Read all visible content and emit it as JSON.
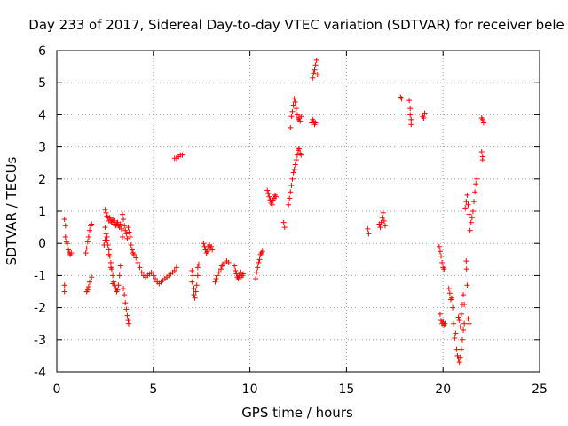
{
  "chart_data": {
    "type": "scatter",
    "title": "Day 233 of 2017, Sidereal Day-to-day VTEC variation (SDTVAR) for receiver bele",
    "xlabel": "GPS time / hours",
    "ylabel": "SDTVAR / TECUs",
    "xlim": [
      0,
      25
    ],
    "ylim": [
      -4,
      6
    ],
    "xticks": [
      0,
      5,
      10,
      15,
      20,
      25
    ],
    "yticks": [
      -4,
      -3,
      -2,
      -1,
      0,
      1,
      2,
      3,
      4,
      5,
      6
    ],
    "xtick_labels": [
      "0",
      "5",
      "10",
      "15",
      "20",
      "25"
    ],
    "ytick_labels": [
      "-4",
      "-3",
      "-2",
      "-1",
      "0",
      "1",
      "2",
      "3",
      "4",
      "5",
      "6"
    ],
    "grid": true,
    "marker": "+",
    "color": "#ff0000",
    "series": [
      {
        "name": "SDTVAR",
        "points": [
          [
            0.4,
            -1.3
          ],
          [
            0.4,
            -1.5
          ],
          [
            0.4,
            0.75
          ],
          [
            0.45,
            0.55
          ],
          [
            0.45,
            0.2
          ],
          [
            0.5,
            0.05
          ],
          [
            0.55,
            0.0
          ],
          [
            0.6,
            -0.2
          ],
          [
            0.65,
            -0.3
          ],
          [
            0.7,
            -0.35
          ],
          [
            0.75,
            -0.3
          ],
          [
            1.5,
            -0.3
          ],
          [
            1.55,
            -0.15
          ],
          [
            1.6,
            0.05
          ],
          [
            1.65,
            0.2
          ],
          [
            1.7,
            0.4
          ],
          [
            1.75,
            0.55
          ],
          [
            1.8,
            0.6
          ],
          [
            1.55,
            -1.5
          ],
          [
            1.6,
            -1.45
          ],
          [
            1.65,
            -1.35
          ],
          [
            1.7,
            -1.2
          ],
          [
            1.8,
            -1.05
          ],
          [
            2.45,
            -0.05
          ],
          [
            2.5,
            0.1
          ],
          [
            2.5,
            1.05
          ],
          [
            2.55,
            0.95
          ],
          [
            2.6,
            0.85
          ],
          [
            2.65,
            0.8
          ],
          [
            2.7,
            0.7
          ],
          [
            2.75,
            0.8
          ],
          [
            2.8,
            0.7
          ],
          [
            2.85,
            0.65
          ],
          [
            2.9,
            0.75
          ],
          [
            2.95,
            0.6
          ],
          [
            3.0,
            0.7
          ],
          [
            3.05,
            0.55
          ],
          [
            3.1,
            0.6
          ],
          [
            3.15,
            0.65
          ],
          [
            3.2,
            0.55
          ],
          [
            3.25,
            0.5
          ],
          [
            3.3,
            0.6
          ],
          [
            3.35,
            0.45
          ],
          [
            3.4,
            0.2
          ],
          [
            2.5,
            0.5
          ],
          [
            2.55,
            0.3
          ],
          [
            2.6,
            0.1
          ],
          [
            2.65,
            -0.05
          ],
          [
            2.7,
            -0.2
          ],
          [
            2.75,
            -0.4
          ],
          [
            2.8,
            -0.6
          ],
          [
            2.85,
            -0.8
          ],
          [
            2.9,
            -1.0
          ],
          [
            2.95,
            -1.2
          ],
          [
            3.0,
            -1.3
          ],
          [
            3.05,
            -1.4
          ],
          [
            3.1,
            -1.5
          ],
          [
            3.15,
            -1.45
          ],
          [
            3.2,
            -1.3
          ],
          [
            3.25,
            -1.0
          ],
          [
            3.3,
            -0.7
          ],
          [
            2.6,
            0.2
          ],
          [
            2.7,
            -0.35
          ],
          [
            2.8,
            -0.75
          ],
          [
            2.9,
            -1.25
          ],
          [
            3.4,
            0.9
          ],
          [
            3.45,
            0.75
          ],
          [
            3.5,
            0.55
          ],
          [
            3.55,
            0.4
          ],
          [
            3.6,
            0.3
          ],
          [
            3.65,
            0.15
          ],
          [
            3.7,
            0.5
          ],
          [
            3.75,
            0.35
          ],
          [
            3.8,
            0.2
          ],
          [
            3.85,
            -0.05
          ],
          [
            3.45,
            -1.4
          ],
          [
            3.5,
            -1.6
          ],
          [
            3.55,
            -1.85
          ],
          [
            3.6,
            -2.05
          ],
          [
            3.65,
            -2.25
          ],
          [
            3.7,
            -2.4
          ],
          [
            3.72,
            -2.5
          ],
          [
            3.9,
            -0.2
          ],
          [
            3.95,
            -0.3
          ],
          [
            4.0,
            -0.35
          ],
          [
            4.1,
            -0.45
          ],
          [
            4.2,
            -0.6
          ],
          [
            4.3,
            -0.75
          ],
          [
            4.4,
            -0.9
          ],
          [
            4.5,
            -1.0
          ],
          [
            4.6,
            -1.05
          ],
          [
            4.7,
            -1.0
          ],
          [
            4.8,
            -0.95
          ],
          [
            4.9,
            -0.9
          ],
          [
            5.0,
            -1.0
          ],
          [
            5.1,
            -1.1
          ],
          [
            5.2,
            -1.2
          ],
          [
            5.3,
            -1.25
          ],
          [
            5.4,
            -1.2
          ],
          [
            5.5,
            -1.15
          ],
          [
            5.6,
            -1.1
          ],
          [
            5.7,
            -1.05
          ],
          [
            5.8,
            -1.0
          ],
          [
            5.9,
            -0.95
          ],
          [
            6.0,
            -0.9
          ],
          [
            6.1,
            -0.85
          ],
          [
            6.2,
            -0.75
          ],
          [
            6.1,
            2.65
          ],
          [
            6.2,
            2.65
          ],
          [
            6.3,
            2.7
          ],
          [
            6.4,
            2.75
          ],
          [
            6.5,
            2.75
          ],
          [
            7.0,
            -0.85
          ],
          [
            7.0,
            -1.2
          ],
          [
            7.05,
            -1.0
          ],
          [
            7.1,
            -1.4
          ],
          [
            7.1,
            -1.6
          ],
          [
            7.15,
            -1.7
          ],
          [
            7.2,
            -1.5
          ],
          [
            7.25,
            -1.3
          ],
          [
            7.3,
            -1.0
          ],
          [
            7.3,
            -0.75
          ],
          [
            7.35,
            -0.65
          ],
          [
            7.6,
            0.0
          ],
          [
            7.65,
            -0.1
          ],
          [
            7.7,
            -0.2
          ],
          [
            7.75,
            -0.3
          ],
          [
            7.8,
            -0.25
          ],
          [
            7.85,
            -0.1
          ],
          [
            7.9,
            -0.05
          ],
          [
            7.95,
            -0.15
          ],
          [
            8.0,
            -0.1
          ],
          [
            8.05,
            -0.2
          ],
          [
            8.2,
            -1.2
          ],
          [
            8.25,
            -1.1
          ],
          [
            8.3,
            -1.0
          ],
          [
            8.4,
            -0.9
          ],
          [
            8.5,
            -0.8
          ],
          [
            8.55,
            -0.7
          ],
          [
            8.6,
            -0.65
          ],
          [
            8.7,
            -0.6
          ],
          [
            8.8,
            -0.55
          ],
          [
            8.9,
            -0.6
          ],
          [
            9.2,
            -0.7
          ],
          [
            9.25,
            -0.85
          ],
          [
            9.3,
            -0.95
          ],
          [
            9.35,
            -1.05
          ],
          [
            9.4,
            -1.1
          ],
          [
            9.45,
            -1.0
          ],
          [
            9.5,
            -0.9
          ],
          [
            9.55,
            -1.05
          ],
          [
            9.6,
            -1.0
          ],
          [
            9.65,
            -0.95
          ],
          [
            10.3,
            -1.1
          ],
          [
            10.35,
            -0.9
          ],
          [
            10.4,
            -0.75
          ],
          [
            10.45,
            -0.6
          ],
          [
            10.5,
            -0.5
          ],
          [
            10.55,
            -0.35
          ],
          [
            10.6,
            -0.3
          ],
          [
            10.65,
            -0.25
          ],
          [
            10.9,
            1.65
          ],
          [
            10.95,
            1.55
          ],
          [
            11.0,
            1.45
          ],
          [
            11.05,
            1.35
          ],
          [
            11.1,
            1.25
          ],
          [
            11.15,
            1.2
          ],
          [
            11.2,
            1.35
          ],
          [
            11.25,
            1.4
          ],
          [
            11.3,
            1.5
          ],
          [
            11.35,
            1.45
          ],
          [
            11.75,
            0.65
          ],
          [
            11.8,
            0.5
          ],
          [
            12.0,
            1.2
          ],
          [
            12.05,
            1.4
          ],
          [
            12.1,
            1.6
          ],
          [
            12.15,
            1.8
          ],
          [
            12.2,
            2.0
          ],
          [
            12.25,
            2.2
          ],
          [
            12.3,
            2.3
          ],
          [
            12.35,
            2.45
          ],
          [
            12.4,
            2.6
          ],
          [
            12.45,
            2.75
          ],
          [
            12.5,
            2.9
          ],
          [
            12.55,
            2.95
          ],
          [
            12.6,
            2.8
          ],
          [
            12.65,
            2.75
          ],
          [
            12.1,
            3.6
          ],
          [
            12.15,
            3.95
          ],
          [
            12.2,
            4.1
          ],
          [
            12.25,
            4.3
          ],
          [
            12.3,
            4.5
          ],
          [
            12.35,
            4.4
          ],
          [
            12.4,
            4.2
          ],
          [
            12.45,
            4.0
          ],
          [
            12.5,
            3.85
          ],
          [
            12.55,
            3.9
          ],
          [
            12.6,
            3.8
          ],
          [
            12.65,
            3.95
          ],
          [
            13.2,
            3.75
          ],
          [
            13.25,
            3.85
          ],
          [
            13.3,
            3.8
          ],
          [
            13.35,
            3.7
          ],
          [
            13.4,
            3.75
          ],
          [
            13.25,
            5.15
          ],
          [
            13.3,
            5.3
          ],
          [
            13.35,
            5.4
          ],
          [
            13.4,
            5.55
          ],
          [
            13.45,
            5.7
          ],
          [
            13.5,
            5.25
          ],
          [
            16.1,
            0.45
          ],
          [
            16.15,
            0.3
          ],
          [
            16.7,
            0.6
          ],
          [
            16.75,
            0.5
          ],
          [
            16.8,
            0.65
          ],
          [
            16.85,
            0.8
          ],
          [
            16.9,
            0.95
          ],
          [
            16.95,
            0.7
          ],
          [
            17.0,
            0.55
          ],
          [
            17.8,
            4.55
          ],
          [
            17.85,
            4.5
          ],
          [
            18.25,
            4.45
          ],
          [
            18.3,
            4.2
          ],
          [
            18.3,
            4.0
          ],
          [
            18.35,
            3.85
          ],
          [
            18.35,
            3.7
          ],
          [
            18.95,
            3.95
          ],
          [
            19.0,
            3.9
          ],
          [
            19.05,
            4.05
          ],
          [
            19.8,
            -0.1
          ],
          [
            19.85,
            -0.25
          ],
          [
            19.9,
            -0.4
          ],
          [
            19.95,
            -0.6
          ],
          [
            20.0,
            -0.75
          ],
          [
            20.05,
            -0.8
          ],
          [
            19.85,
            -2.2
          ],
          [
            19.9,
            -2.4
          ],
          [
            19.95,
            -2.5
          ],
          [
            20.0,
            -2.45
          ],
          [
            20.05,
            -2.55
          ],
          [
            20.1,
            -2.5
          ],
          [
            20.3,
            -1.4
          ],
          [
            20.35,
            -1.55
          ],
          [
            20.4,
            -1.75
          ],
          [
            20.45,
            -1.7
          ],
          [
            20.5,
            -2.0
          ],
          [
            20.55,
            -2.5
          ],
          [
            20.6,
            -2.95
          ],
          [
            20.65,
            -2.8
          ],
          [
            20.7,
            -3.3
          ],
          [
            20.75,
            -3.5
          ],
          [
            20.8,
            -3.6
          ],
          [
            20.85,
            -3.7
          ],
          [
            20.9,
            -3.55
          ],
          [
            20.95,
            -3.3
          ],
          [
            21.0,
            -3.0
          ],
          [
            21.05,
            -2.7
          ],
          [
            21.1,
            -2.5
          ],
          [
            20.8,
            -2.3
          ],
          [
            20.85,
            -2.4
          ],
          [
            20.9,
            -2.6
          ],
          [
            20.95,
            -2.2
          ],
          [
            21.0,
            -1.9
          ],
          [
            21.05,
            -1.6
          ],
          [
            21.1,
            -1.9
          ],
          [
            21.2,
            -0.55
          ],
          [
            21.22,
            -0.8
          ],
          [
            21.25,
            -1.3
          ],
          [
            21.3,
            -2.35
          ],
          [
            21.35,
            -2.5
          ],
          [
            21.15,
            1.1
          ],
          [
            21.2,
            1.3
          ],
          [
            21.25,
            1.5
          ],
          [
            21.3,
            1.2
          ],
          [
            21.35,
            0.9
          ],
          [
            21.4,
            0.4
          ],
          [
            21.45,
            0.65
          ],
          [
            21.5,
            0.8
          ],
          [
            21.55,
            1.0
          ],
          [
            21.6,
            1.3
          ],
          [
            21.65,
            1.6
          ],
          [
            21.7,
            1.85
          ],
          [
            21.75,
            2.0
          ],
          [
            22.0,
            3.9
          ],
          [
            22.05,
            3.85
          ],
          [
            22.1,
            3.75
          ],
          [
            22.0,
            2.85
          ],
          [
            22.05,
            2.7
          ],
          [
            22.05,
            2.6
          ]
        ]
      }
    ]
  }
}
